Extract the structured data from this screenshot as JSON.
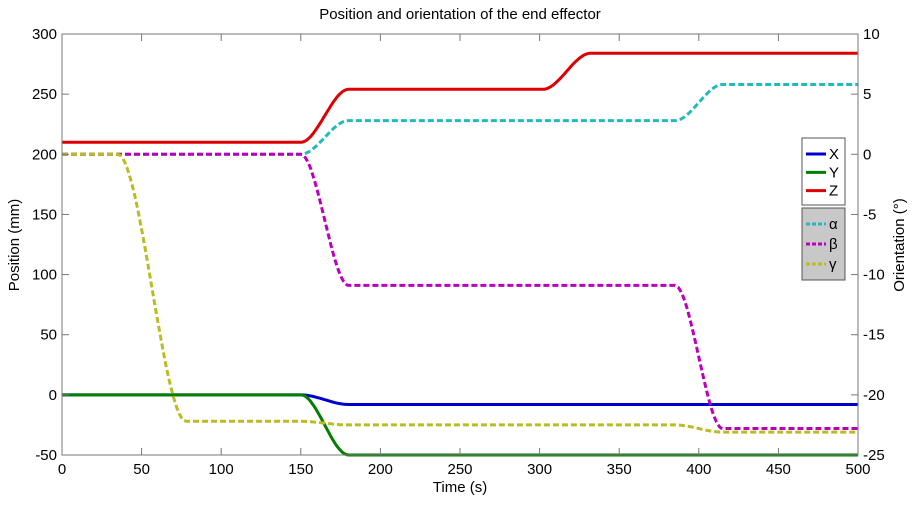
{
  "chart_data": {
    "type": "line",
    "title": "Position and  orientation of the end effector",
    "xlabel": "Time (s)",
    "ylabel_left": "Position (mm)",
    "ylabel_right": "Orientation (°)",
    "xlim": [
      0,
      500
    ],
    "ylim_left": [
      -50,
      300
    ],
    "ylim_right": [
      -25,
      10
    ],
    "xticks": [
      0,
      50,
      100,
      150,
      200,
      250,
      300,
      350,
      400,
      450,
      500
    ],
    "yticks_left": [
      -50,
      0,
      50,
      100,
      150,
      200,
      250,
      300
    ],
    "yticks_right": [
      -25,
      -20,
      -15,
      -10,
      -5,
      0,
      5,
      10
    ],
    "grid": false,
    "legend_placement": "right",
    "series": [
      {
        "name": "X",
        "axis": "left",
        "color": "#0000cc",
        "dash": false,
        "points": [
          [
            0,
            0
          ],
          [
            150,
            0
          ],
          [
            180,
            -8
          ],
          [
            500,
            -8
          ]
        ]
      },
      {
        "name": "Y",
        "axis": "left",
        "color": "#007f00",
        "dash": false,
        "points": [
          [
            0,
            0
          ],
          [
            150,
            0
          ],
          [
            180,
            -50
          ],
          [
            500,
            -50
          ]
        ]
      },
      {
        "name": "Z",
        "axis": "left",
        "color": "#dd0000",
        "dash": false,
        "points": [
          [
            0,
            210
          ],
          [
            150,
            210
          ],
          [
            180,
            254
          ],
          [
            302,
            254
          ],
          [
            332,
            284
          ],
          [
            500,
            284
          ]
        ]
      },
      {
        "name": "α",
        "axis": "right",
        "color": "#22bbbb",
        "dash": true,
        "points": [
          [
            0,
            0
          ],
          [
            150,
            0
          ],
          [
            180,
            2.8
          ],
          [
            385,
            2.8
          ],
          [
            415,
            5.8
          ],
          [
            500,
            5.8
          ]
        ]
      },
      {
        "name": "β",
        "axis": "right",
        "color": "#bb00bb",
        "dash": true,
        "points": [
          [
            0,
            0
          ],
          [
            150,
            0
          ],
          [
            180,
            -10.9
          ],
          [
            385,
            -10.9
          ],
          [
            415,
            -22.8
          ],
          [
            500,
            -22.8
          ]
        ]
      },
      {
        "name": "γ",
        "axis": "right",
        "color": "#bbbb22",
        "dash": true,
        "points": [
          [
            0,
            0
          ],
          [
            35,
            0
          ],
          [
            78,
            -22.2
          ],
          [
            150,
            -22.2
          ],
          [
            180,
            -22.5
          ],
          [
            385,
            -22.5
          ],
          [
            415,
            -23.1
          ],
          [
            500,
            -23.1
          ]
        ]
      }
    ]
  }
}
